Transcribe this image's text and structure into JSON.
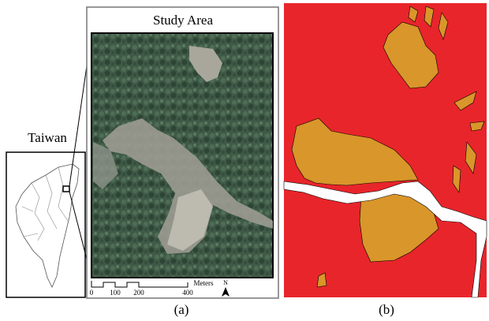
{
  "panel_a": {
    "title": "Study Area",
    "inset_label": "Taiwan",
    "scale_bar": {
      "ticks": [
        "0",
        "100",
        "200",
        "400"
      ],
      "unit": "Meters"
    },
    "north": "N",
    "caption": "(a)"
  },
  "panel_b": {
    "caption": "(b)"
  }
}
